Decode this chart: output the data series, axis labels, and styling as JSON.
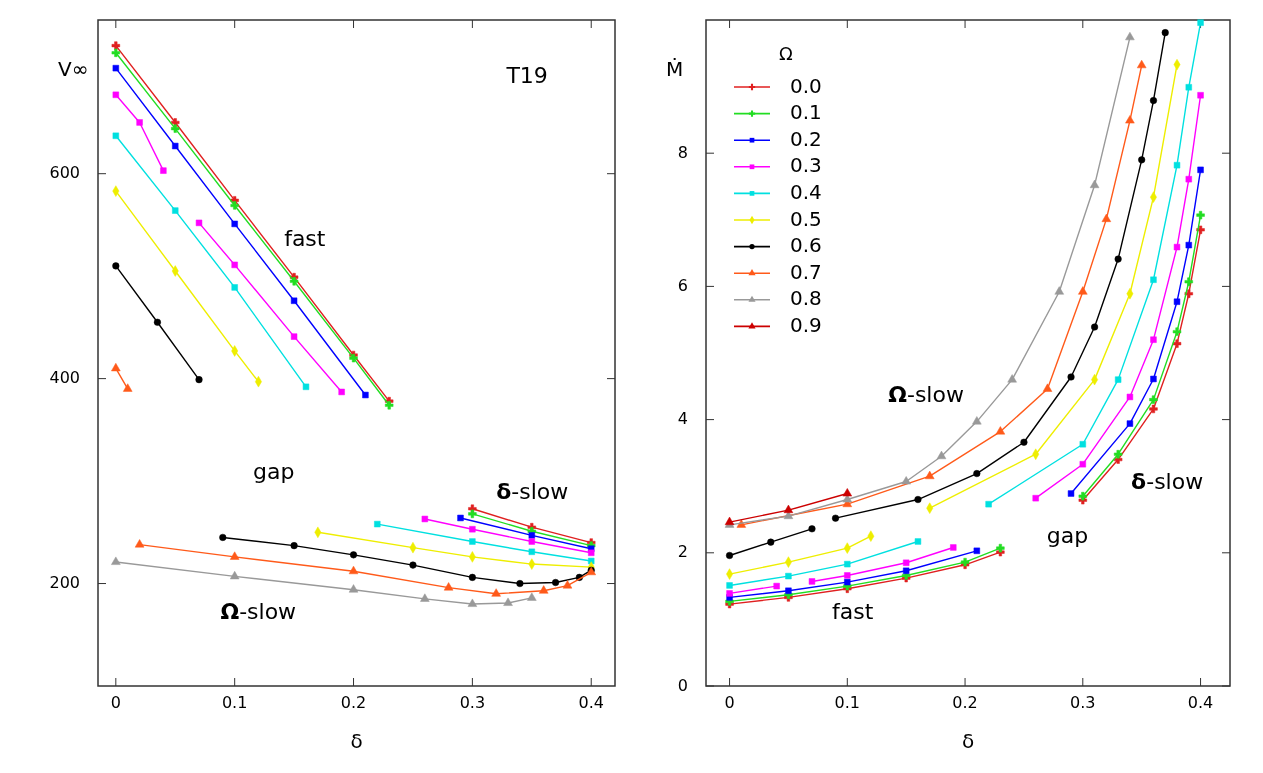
{
  "chart_data": [
    {
      "type": "line",
      "xlabel": "δ",
      "ylabel": "V∞",
      "xlim": [
        -0.015,
        0.42
      ],
      "ylim": [
        100,
        750
      ],
      "xticks": [
        0,
        0.1,
        0.2,
        0.3,
        0.4
      ],
      "yticks": [
        200,
        400,
        600
      ],
      "annotations": [
        "T19",
        "fast",
        "gap",
        "δ-slow",
        "Ω-slow"
      ],
      "series": [
        {
          "color": "#e02020",
          "marker": "cross",
          "x": [
            0,
            0.05,
            0.1,
            0.15,
            0.2,
            0.23,
            null,
            0.3,
            0.35,
            0.4
          ],
          "values": [
            725,
            650,
            574,
            499,
            423,
            378,
            null,
            273,
            255,
            240
          ]
        },
        {
          "color": "#22dd22",
          "marker": "cross",
          "x": [
            0,
            0.05,
            0.1,
            0.15,
            0.2,
            0.23,
            null,
            0.3,
            0.35,
            0.4
          ],
          "values": [
            718,
            644,
            569,
            495,
            420,
            374,
            null,
            268,
            251,
            237
          ]
        },
        {
          "color": "#0000ff",
          "marker": "square",
          "x": [
            0,
            0.05,
            0.1,
            0.15,
            0.21,
            null,
            0.29,
            0.35,
            0.4
          ],
          "values": [
            703,
            627,
            551,
            476,
            384,
            null,
            264,
            247,
            234
          ]
        },
        {
          "color": "#ff00ff",
          "marker": "square",
          "x": [
            0,
            0.02,
            0.04,
            null,
            0.07,
            0.1,
            0.15,
            0.19,
            null,
            0.26,
            0.3,
            0.35,
            0.4
          ],
          "values": [
            677,
            650,
            603,
            null,
            552,
            511,
            441,
            387,
            null,
            263,
            253,
            241,
            230
          ]
        },
        {
          "color": "#00e0e0",
          "marker": "square",
          "x": [
            0,
            0.05,
            0.1,
            0.16,
            null,
            0.22,
            0.3,
            0.35,
            0.4
          ],
          "values": [
            637,
            564,
            489,
            392,
            null,
            258,
            241,
            231,
            222
          ]
        },
        {
          "color": "#eeee00",
          "marker": "diamond",
          "x": [
            0,
            0.05,
            0.1,
            0.12,
            null,
            0.17,
            0.25,
            0.3,
            0.35,
            0.4
          ],
          "values": [
            583,
            505,
            427,
            397,
            null,
            250,
            235,
            226,
            219,
            216
          ]
        },
        {
          "color": "#000000",
          "marker": "circle",
          "x": [
            0,
            0.035,
            0.07,
            null,
            0.09,
            0.15,
            0.2,
            0.25,
            0.3,
            0.34,
            0.37,
            0.39,
            0.4
          ],
          "values": [
            510,
            455,
            399,
            null,
            245,
            237,
            228,
            218,
            206,
            200,
            201,
            206,
            213
          ]
        },
        {
          "color": "#ff5a1a",
          "marker": "triangle",
          "x": [
            0,
            0.01,
            null,
            0.02,
            0.1,
            0.2,
            0.28,
            0.32,
            0.36,
            0.38,
            0.4
          ],
          "values": [
            410,
            390,
            null,
            238,
            226,
            212,
            196,
            190,
            193,
            198,
            211
          ]
        },
        {
          "color": "#999999",
          "marker": "triangle",
          "x": [
            0,
            0.1,
            0.2,
            0.26,
            0.3,
            0.33,
            0.35
          ],
          "values": [
            221,
            207,
            194,
            185,
            180,
            181,
            186
          ]
        }
      ]
    },
    {
      "type": "line",
      "xlabel": "δ",
      "ylabel": "Ṁ",
      "legend_title": "Ω",
      "legend": "top left",
      "xlim": [
        -0.02,
        0.425
      ],
      "ylim": [
        0,
        10
      ],
      "xticks": [
        0,
        0.1,
        0.2,
        0.3,
        0.4
      ],
      "yticks": [
        0,
        2,
        4,
        6,
        8
      ],
      "annotations": [
        "Ω-slow",
        "δ-slow",
        "gap",
        "fast"
      ],
      "series": [
        {
          "name": "0.0",
          "color": "#e02020",
          "marker": "cross",
          "x": [
            0,
            0.05,
            0.1,
            0.15,
            0.2,
            0.23,
            null,
            0.3,
            0.33,
            0.36,
            0.38,
            0.39,
            0.4
          ],
          "values": [
            1.23,
            1.33,
            1.46,
            1.62,
            1.82,
            2.01,
            null,
            2.79,
            3.4,
            4.16,
            5.14,
            5.89,
            6.85
          ]
        },
        {
          "name": "0.1",
          "color": "#22dd22",
          "marker": "cross",
          "x": [
            0,
            0.05,
            0.1,
            0.15,
            0.2,
            0.23,
            null,
            0.3,
            0.33,
            0.36,
            0.38,
            0.39,
            0.4
          ],
          "values": [
            1.27,
            1.37,
            1.5,
            1.66,
            1.86,
            2.07,
            null,
            2.85,
            3.48,
            4.3,
            5.32,
            6.07,
            7.07
          ]
        },
        {
          "name": "0.2",
          "color": "#0000ff",
          "marker": "square",
          "x": [
            0,
            0.05,
            0.1,
            0.15,
            0.21,
            null,
            0.29,
            0.34,
            0.36,
            0.38,
            0.39,
            0.4
          ],
          "values": [
            1.33,
            1.43,
            1.56,
            1.73,
            2.03,
            null,
            2.89,
            3.94,
            4.61,
            5.77,
            6.62,
            7.75
          ]
        },
        {
          "name": "0.3",
          "color": "#ff00ff",
          "marker": "square",
          "x": [
            0,
            0.04,
            null,
            0.07,
            0.1,
            0.15,
            0.19,
            null,
            0.26,
            0.3,
            0.34,
            0.36,
            0.38,
            0.39,
            0.4
          ],
          "values": [
            1.39,
            1.5,
            null,
            1.57,
            1.66,
            1.85,
            2.08,
            null,
            2.82,
            3.33,
            4.34,
            5.2,
            6.59,
            7.61,
            8.87
          ]
        },
        {
          "name": "0.4",
          "color": "#00e0e0",
          "marker": "square",
          "x": [
            0,
            0.05,
            0.1,
            0.16,
            null,
            0.22,
            0.3,
            0.33,
            0.36,
            0.38,
            0.39,
            0.4
          ],
          "values": [
            1.51,
            1.65,
            1.83,
            2.17,
            null,
            2.73,
            3.63,
            4.6,
            6.1,
            7.82,
            8.99,
            9.96
          ]
        },
        {
          "name": "0.5",
          "color": "#eeee00",
          "marker": "diamond",
          "x": [
            0,
            0.05,
            0.1,
            0.12,
            null,
            0.17,
            0.26,
            0.31,
            0.34,
            0.36,
            0.38
          ],
          "values": [
            1.68,
            1.86,
            2.07,
            2.25,
            null,
            2.67,
            3.48,
            4.6,
            5.89,
            7.34,
            9.33
          ]
        },
        {
          "name": "0.6",
          "color": "#000000",
          "marker": "circle",
          "x": [
            0,
            0.035,
            0.07,
            null,
            0.09,
            0.16,
            0.21,
            0.25,
            0.29,
            0.31,
            0.33,
            0.35,
            0.36,
            0.37
          ],
          "values": [
            1.96,
            2.16,
            2.36,
            null,
            2.52,
            2.8,
            3.19,
            3.66,
            4.64,
            5.39,
            6.41,
            7.9,
            8.79,
            9.81
          ]
        },
        {
          "name": "0.7",
          "color": "#ff5a1a",
          "marker": "triangle",
          "x": [
            0.01,
            0.1,
            0.17,
            0.23,
            0.27,
            0.3,
            0.32,
            0.34,
            0.35
          ],
          "values": [
            2.42,
            2.73,
            3.15,
            3.82,
            4.46,
            5.92,
            7.01,
            8.49,
            9.32
          ]
        },
        {
          "name": "0.8",
          "color": "#999999",
          "marker": "triangle",
          "x": [
            0,
            0.05,
            0.1,
            0.15,
            0.18,
            0.21,
            0.24,
            0.28,
            0.31,
            0.34
          ],
          "values": [
            2.42,
            2.55,
            2.8,
            3.07,
            3.45,
            3.97,
            4.6,
            5.92,
            7.52,
            9.74
          ]
        },
        {
          "name": "0.9",
          "color": "#cc0000",
          "marker": "triangle",
          "x": [
            0,
            0.05,
            0.1
          ],
          "values": [
            2.46,
            2.64,
            2.89
          ]
        }
      ]
    }
  ]
}
